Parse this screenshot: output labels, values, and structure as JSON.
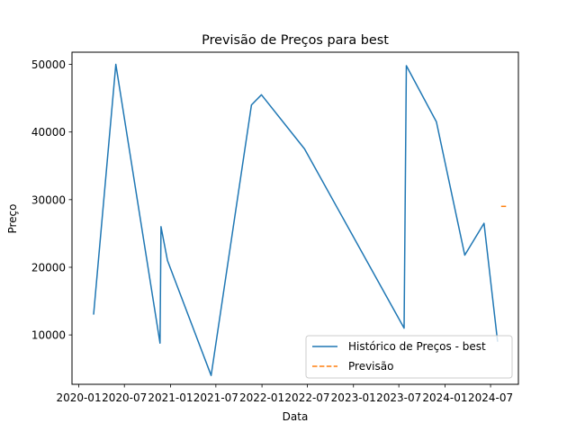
{
  "chart_data": {
    "type": "line",
    "title": "Previsão de Preços para best",
    "xlabel": "Data",
    "ylabel": "Preço",
    "xlim": [
      "2019-12-05",
      "2024-10-20"
    ],
    "ylim": [
      2700,
      51800
    ],
    "x_ticks": [
      "2020-01-01",
      "2020-07-01",
      "2021-01-01",
      "2021-07-01",
      "2022-01-01",
      "2022-07-01",
      "2023-01-01",
      "2023-07-01",
      "2024-01-01",
      "2024-07-01"
    ],
    "x_tick_labels": [
      "2020-01",
      "2020-07",
      "2021-01",
      "2021-07",
      "2022-01",
      "2022-07",
      "2023-01",
      "2023-07",
      "2024-01",
      "2024-07"
    ],
    "y_ticks": [
      10000,
      20000,
      30000,
      40000,
      50000
    ],
    "y_tick_labels": [
      "10000",
      "20000",
      "30000",
      "40000",
      "50000"
    ],
    "grid": false,
    "legend": "lower-right",
    "series": [
      {
        "name": "Histórico de Preços - best",
        "color": "#1f77b4",
        "style": "solid",
        "x": [
          "2020-02-29",
          "2020-05-28",
          "2020-11-20",
          "2020-11-24",
          "2020-12-20",
          "2021-06-12",
          "2021-11-20",
          "2021-12-30",
          "2022-06-20",
          "2023-07-22",
          "2023-07-31",
          "2023-11-28",
          "2024-03-20",
          "2024-06-05",
          "2024-07-29"
        ],
        "y": [
          13000,
          50000,
          8800,
          26000,
          21000,
          4000,
          44000,
          45500,
          37500,
          11000,
          49800,
          41500,
          21800,
          26500,
          9000
        ]
      },
      {
        "name": "Previsão",
        "color": "#ff7f0e",
        "style": "dashed",
        "x": [
          "2024-08-12",
          "2024-09-01"
        ],
        "y": [
          29000,
          29000
        ]
      }
    ]
  }
}
